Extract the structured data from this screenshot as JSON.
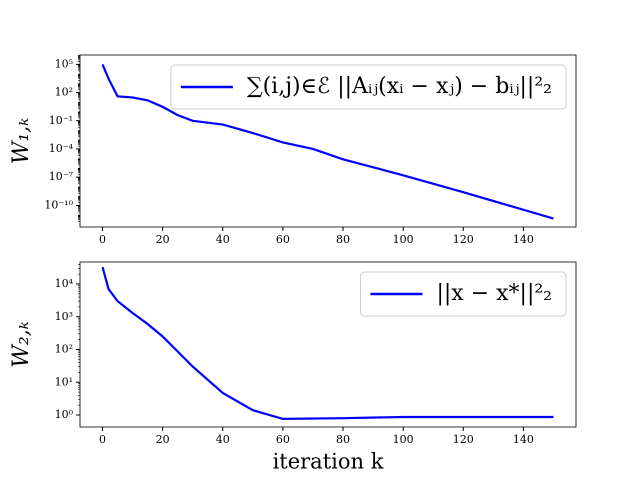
{
  "chart_data": [
    {
      "type": "line",
      "y_label": "W₁,ₖ",
      "log_y": true,
      "legend": "upper right",
      "xlim": [
        -7.5,
        157.5
      ],
      "xticks": [
        0,
        20,
        40,
        60,
        80,
        100,
        120,
        140
      ],
      "ylim": [
        5e-13,
        1000000.0
      ],
      "yticks": [
        {
          "value": 1e-10,
          "label": "10⁻¹⁰"
        },
        {
          "value": 1e-07,
          "label": "10⁻⁷"
        },
        {
          "value": 0.0001,
          "label": "10⁻⁴"
        },
        {
          "value": 0.1,
          "label": "10⁻¹"
        },
        {
          "value": 100,
          "label": "10²"
        },
        {
          "value": 100000,
          "label": "10⁵"
        }
      ],
      "x": [
        0,
        2,
        5,
        10,
        15,
        20,
        25,
        30,
        40,
        50,
        60,
        70,
        80,
        100,
        120,
        150
      ],
      "series": [
        {
          "name": "∑(i,j)∈ℰ ||Aᵢⱼ(xᵢ − xⱼ) − bᵢⱼ||²₂",
          "color": "#0000ff",
          "values": [
            100000,
            3000,
            40,
            30,
            15,
            3,
            0.4,
            0.1,
            0.04,
            0.005,
            0.0005,
            0.0001,
            8e-06,
            1.6e-07,
            2.5e-09,
            4e-12
          ]
        }
      ]
    },
    {
      "type": "line",
      "y_label": "W₂,ₖ",
      "x_label": "iteration k",
      "log_y": true,
      "legend": "upper right",
      "xlim": [
        -7.5,
        157.5
      ],
      "xticks": [
        0,
        20,
        40,
        60,
        80,
        100,
        120,
        140
      ],
      "ylim": [
        0.43,
        47000
      ],
      "yticks": [
        {
          "value": 1,
          "label": "10⁰"
        },
        {
          "value": 10,
          "label": "10¹"
        },
        {
          "value": 100,
          "label": "10²"
        },
        {
          "value": 1000,
          "label": "10³"
        },
        {
          "value": 10000,
          "label": "10⁴"
        }
      ],
      "x": [
        0,
        2,
        5,
        10,
        15,
        20,
        30,
        40,
        50,
        60,
        80,
        100,
        150
      ],
      "series": [
        {
          "name": "||x − x*||²₂",
          "color": "#0000ff",
          "values": [
            33000,
            7000,
            3000,
            1300,
            600,
            250,
            30,
            4.7,
            1.4,
            0.76,
            0.8,
            0.87,
            0.87
          ]
        }
      ]
    }
  ]
}
